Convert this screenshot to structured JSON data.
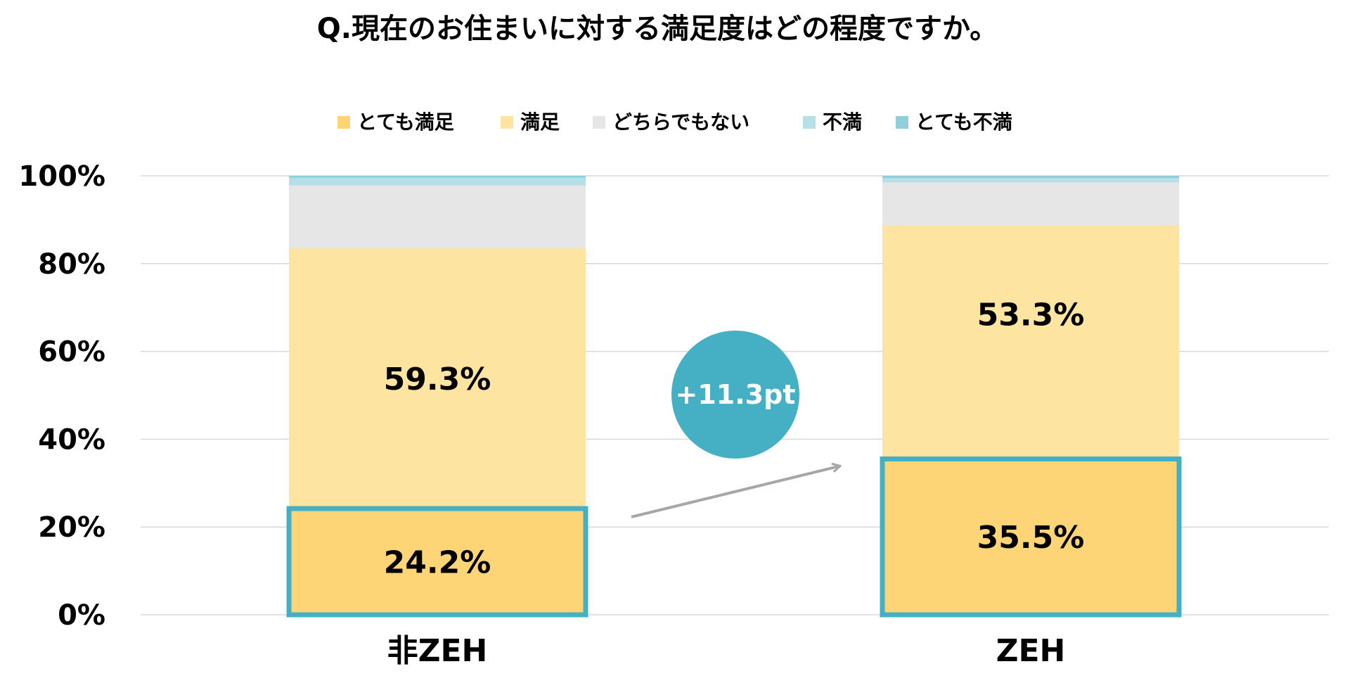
{
  "chart_data": {
    "type": "bar",
    "stacked": true,
    "title": "Q.現在のお住まいに対する満足度はどの程度ですか。",
    "categories": [
      "非ZEH",
      "ZEH"
    ],
    "ylim": [
      0,
      100
    ],
    "yticks": [
      "0%",
      "20%",
      "40%",
      "60%",
      "80%",
      "100%"
    ],
    "grid": true,
    "legend_position": "top",
    "series": [
      {
        "name": "とても満足",
        "color": "#FDD577",
        "values": [
          24.2,
          35.5
        ],
        "labels": [
          "24.2%",
          "35.5%"
        ]
      },
      {
        "name": "満足",
        "color": "#FDE4A1",
        "values": [
          59.3,
          53.3
        ],
        "labels": [
          "59.3%",
          "53.3%"
        ]
      },
      {
        "name": "どちらでもない",
        "color": "#E6E6E6",
        "values": [
          14.3,
          9.7
        ],
        "labels": [
          "",
          ""
        ]
      },
      {
        "name": "不満",
        "color": "#B5E0E8",
        "values": [
          1.8,
          1.0
        ],
        "labels": [
          "",
          ""
        ]
      },
      {
        "name": "とても不満",
        "color": "#8ECFDB",
        "values": [
          0.4,
          0.5
        ],
        "labels": [
          "",
          ""
        ]
      }
    ],
    "highlight_color": "#45AFC4",
    "annotation": {
      "text": "+11.3pt",
      "color": "#45AFC4"
    }
  }
}
